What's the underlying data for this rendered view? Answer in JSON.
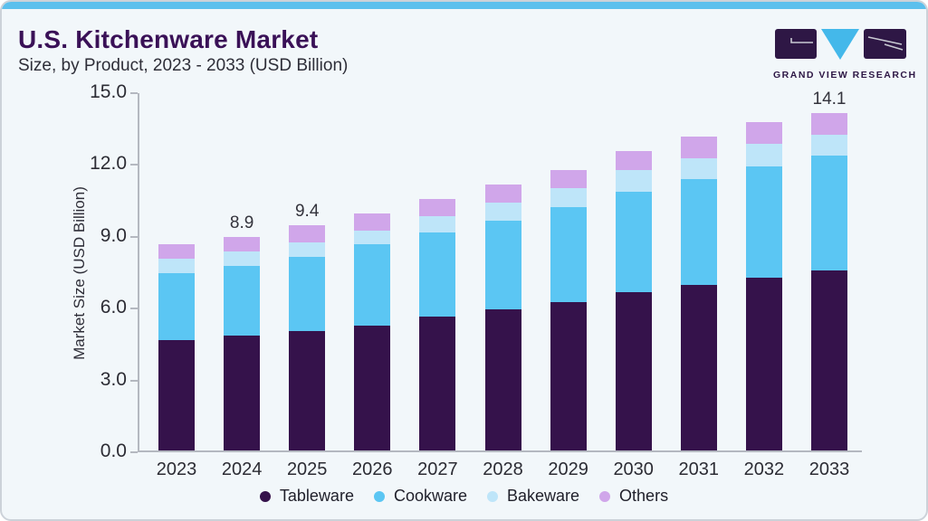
{
  "page": {
    "background_color": "#f2f7fa",
    "top_bar_color": "#5cc0ed",
    "border_color": "#ccd2d9",
    "axis_color": "#b4b8c0"
  },
  "header": {
    "title": "U.S. Kitchenware Market",
    "subtitle": "Size, by Product, 2023 - 2033 (USD Billion)"
  },
  "logo": {
    "caption": "GRAND VIEW RESEARCH",
    "block_color": "#2e1745",
    "triangle_color": "#44b8ea"
  },
  "chart_data": {
    "type": "bar",
    "stacked": true,
    "title": "U.S. Kitchenware Market Size, by Product, 2023 - 2033 (USD Billion)",
    "categories": [
      "2023",
      "2024",
      "2025",
      "2026",
      "2027",
      "2028",
      "2029",
      "2030",
      "2031",
      "2032",
      "2033"
    ],
    "series": [
      {
        "name": "Tableware",
        "color": "#35124b",
        "values": [
          4.6,
          4.8,
          5.0,
          5.2,
          5.6,
          5.9,
          6.2,
          6.6,
          6.9,
          7.2,
          7.5
        ]
      },
      {
        "name": "Cookware",
        "color": "#5bc6f3",
        "values": [
          2.8,
          2.9,
          3.1,
          3.4,
          3.5,
          3.7,
          3.95,
          4.2,
          4.45,
          4.65,
          4.8
        ]
      },
      {
        "name": "Bakeware",
        "color": "#bee5f9",
        "values": [
          0.6,
          0.6,
          0.6,
          0.6,
          0.7,
          0.75,
          0.8,
          0.9,
          0.85,
          0.95,
          0.9
        ]
      },
      {
        "name": "Others",
        "color": "#d0a6ea",
        "values": [
          0.6,
          0.6,
          0.7,
          0.7,
          0.7,
          0.75,
          0.75,
          0.8,
          0.9,
          0.9,
          0.9
        ]
      }
    ],
    "totals": [
      8.6,
      8.9,
      9.4,
      9.9,
      10.5,
      11.1,
      11.7,
      12.5,
      13.1,
      13.7,
      14.1
    ],
    "totals_labeled": {
      "2024": "8.9",
      "2025": "9.4",
      "2033": "14.1"
    },
    "ylabel": "Market Size (USD Billion)",
    "yticks": [
      0,
      3,
      6,
      9,
      12,
      15
    ],
    "ytick_labels": [
      "0.0",
      "3.0",
      "6.0",
      "9.0",
      "12.0",
      "15.0"
    ],
    "ylim": [
      0,
      15
    ],
    "grid": false,
    "legend_position": "bottom"
  }
}
